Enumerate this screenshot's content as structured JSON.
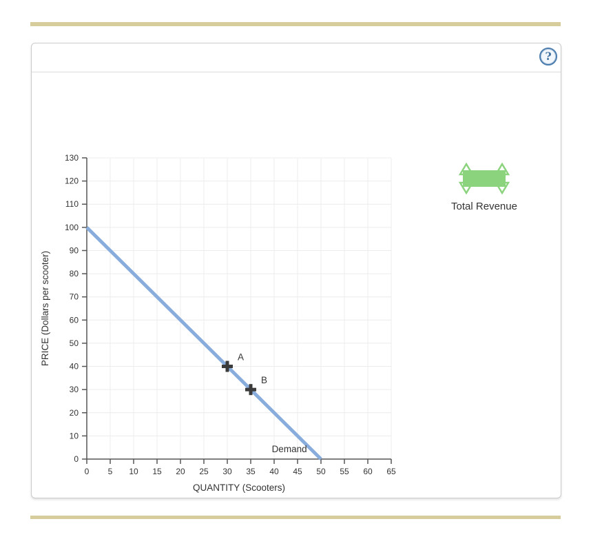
{
  "page": {
    "accent_bar_color": "#D7CC9C"
  },
  "help": {
    "glyph": "?"
  },
  "tool": {
    "label": "Total Revenue",
    "color": "#8CD37E"
  },
  "chart_data": {
    "type": "line",
    "title": "",
    "xlabel": "QUANTITY (Scooters)",
    "ylabel": "PRICE (Dollars per scooter)",
    "xlim": [
      0,
      65
    ],
    "ylim": [
      0,
      130
    ],
    "xticks": [
      0,
      5,
      10,
      15,
      20,
      25,
      30,
      35,
      40,
      45,
      50,
      55,
      60,
      65
    ],
    "yticks": [
      0,
      10,
      20,
      30,
      40,
      50,
      60,
      70,
      80,
      90,
      100,
      110,
      120,
      130
    ],
    "grid": true,
    "grid_color": "#ECECEC",
    "axis_color": "#555555",
    "point_color": "#3B3B3B",
    "legend_position": "on-line",
    "series": [
      {
        "name": "Demand",
        "x": [
          0,
          50
        ],
        "y": [
          100,
          0
        ],
        "color": "#88ACDB",
        "label_pos": {
          "x": 47,
          "y": 3
        }
      }
    ],
    "points": [
      {
        "label": "A",
        "x": 30,
        "y": 40
      },
      {
        "label": "B",
        "x": 35,
        "y": 30
      }
    ]
  }
}
